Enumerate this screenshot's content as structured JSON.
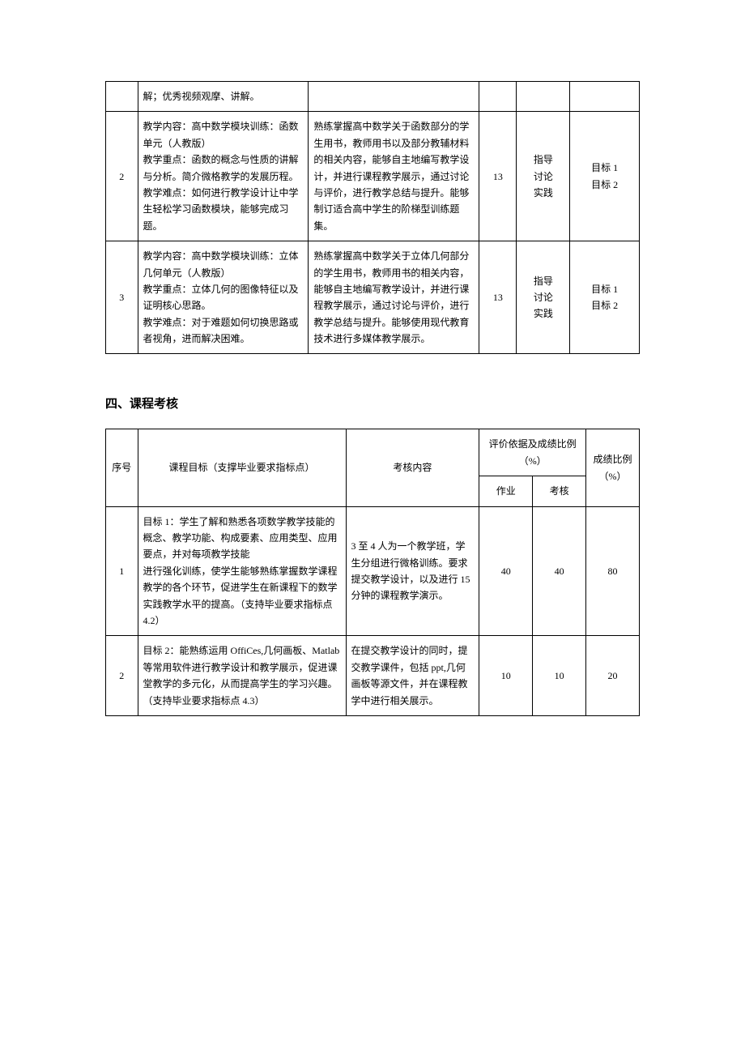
{
  "table1": {
    "rows": [
      {
        "num": "",
        "content": "解；优秀视频观摩、讲解。",
        "objective": "",
        "hours": "",
        "method": "",
        "target": ""
      },
      {
        "num": "2",
        "content": "教学内容：高中数学模块训练：函数单元（人教版）\n教学重点：函数的概念与性质的讲解与分析。简介微格教学的发展历程。\n教学难点：如何进行教学设计让中学生轻松学习函数模块，能够完成习题。",
        "objective": "熟练掌握高中数学关于函数部分的学生用书，教师用书以及部分教辅材料的相关内容，能够自主地编写教学设计，并进行课程教学展示，通过讨论与评价，进行教学总结与提升。能够制订适合高中学生的阶梯型训练题集。",
        "hours": "13",
        "method": "指导\n讨论\n实践",
        "target": "目标 1\n目标 2"
      },
      {
        "num": "3",
        "content": "教学内容：高中数学模块训练：立体几何单元（人教版）\n教学重点：立体几何的图像特征以及证明核心思路。\n教学难点：对于难题如何切换思路或者视角，进而解决困难。",
        "objective": "熟练掌握高中数学关于立体几何部分的学生用书，教师用书的相关内容，能够自主地编写教学设计，并进行课程教学展示，通过讨论与评价，进行教学总结与提升。能够使用现代教育技术进行多媒体教学展示。",
        "hours": "13",
        "method": "指导\n讨论\n实践",
        "target": "目标 1\n目标 2"
      }
    ]
  },
  "sectionTitle": "四、课程考核",
  "table2": {
    "headers": {
      "h1": "序号",
      "h2": "课程目标（支撑毕业要求指标点）",
      "h3": "考核内容",
      "h4": "评价依据及成绩比例（%）",
      "h4a": "作业",
      "h4b": "考核",
      "h5": "成绩比例（%）"
    },
    "rows": [
      {
        "num": "1",
        "goal": "目标 1：学生了解和熟悉各项数学教学技能的概念、教学功能、构成要素、应用类型、应用要点，并对每项教学技能\n进行强化训练，使学生能够熟练掌握数学课程教学的各个环节，促进学生在新课程下的数学实践教学水平的提高。（支持毕业要求指标点 4.2）",
        "content": "3 至 4 人为一个教学班，学生分组进行微格训练。要求提交教学设计，以及进行 15 分钟的课程教学演示。",
        "homework": "40",
        "exam": "40",
        "ratio": "80"
      },
      {
        "num": "2",
        "goal": "目标 2：能熟练运用 OffiCes,几何画板、Matlab 等常用软件进行教学设计和教学展示，促进课堂教学的多元化，从而提高学生的学习兴趣。（支持毕业要求指标点 4.3）",
        "content": "在提交教学设计的同时，提交教学课件，包括 ppt,几何画板等源文件，并在课程教学中进行相关展示。",
        "homework": "10",
        "exam": "10",
        "ratio": "20"
      }
    ]
  }
}
